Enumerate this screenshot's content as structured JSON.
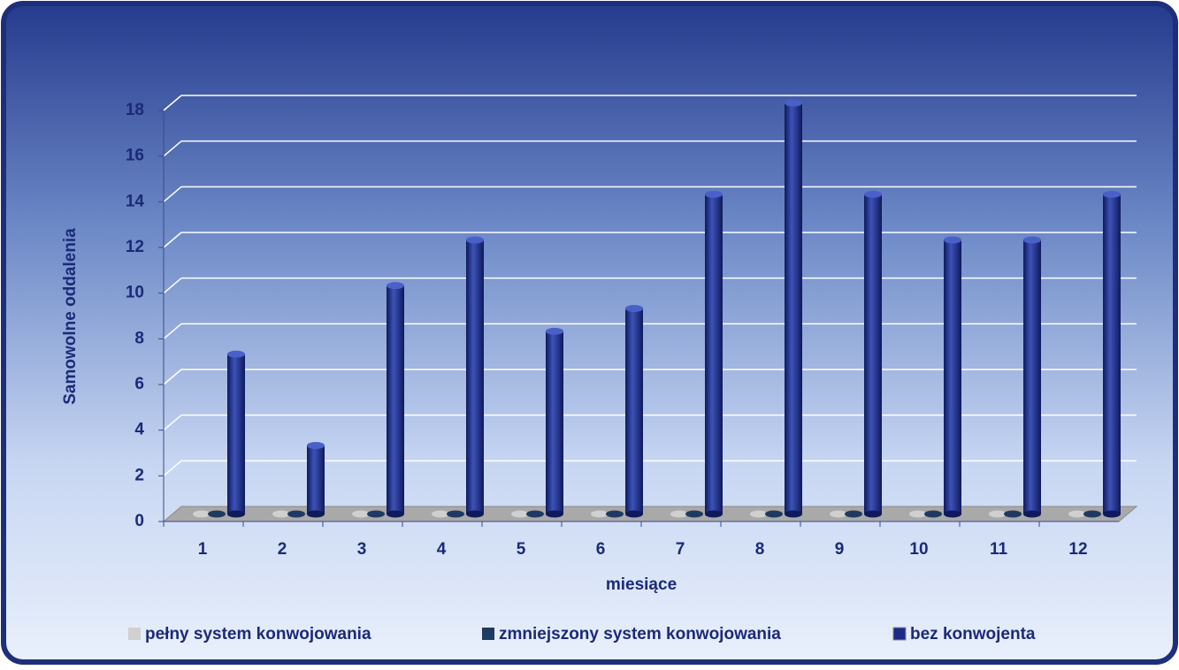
{
  "chart_data": {
    "type": "bar3d",
    "y_label": "Samowolne oddalenia",
    "x_label": "miesiące",
    "categories": [
      "1",
      "2",
      "3",
      "4",
      "5",
      "6",
      "7",
      "8",
      "9",
      "10",
      "11",
      "12"
    ],
    "series": [
      {
        "name": "pełny system konwojowania",
        "color": "#d0d0d0",
        "values": [
          0,
          0,
          0,
          0,
          0,
          0,
          0,
          0,
          0,
          0,
          0,
          0
        ]
      },
      {
        "name": "zmniejszony system konwojowania",
        "color": "#1f3a60",
        "values": [
          0,
          0,
          0,
          0,
          0,
          0,
          0,
          0,
          0,
          0,
          0,
          0
        ]
      },
      {
        "name": "bez konwojenta",
        "color": "#1c2a86",
        "values": [
          7,
          3,
          10,
          12,
          8,
          9,
          14,
          18,
          14,
          12,
          12,
          14
        ]
      }
    ],
    "ylim": [
      0,
      18
    ],
    "yticks": [
      0,
      2,
      4,
      6,
      8,
      10,
      12,
      14,
      16,
      18
    ],
    "grid": true,
    "legend": "bottom"
  }
}
